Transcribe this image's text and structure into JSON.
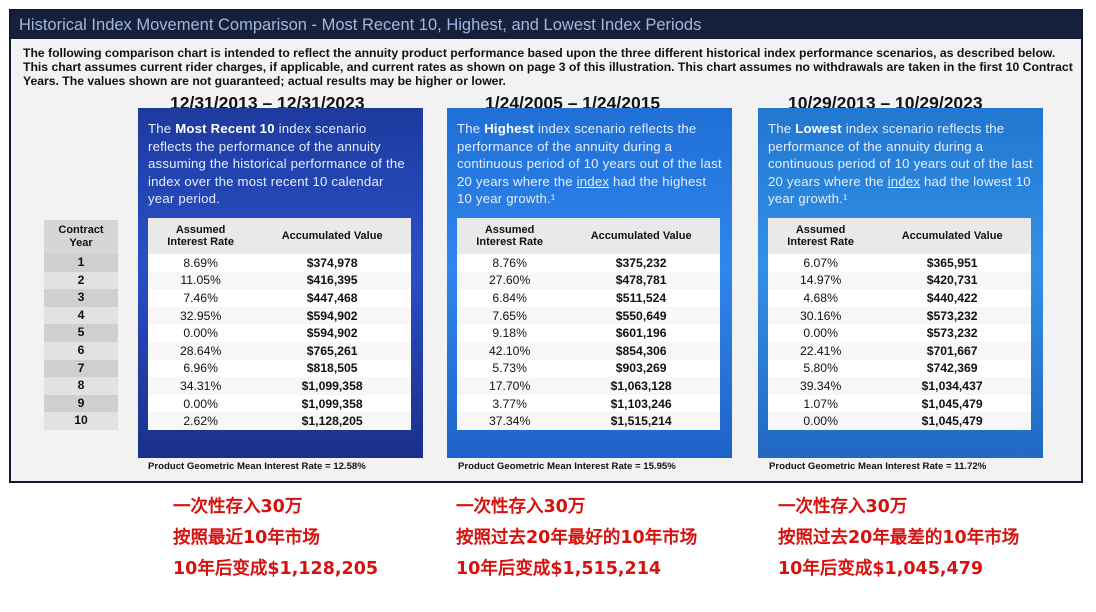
{
  "header": {
    "title": "Historical Index Movement Comparison - Most Recent 10, Highest, and Lowest Index Periods",
    "intro": "The following comparison chart is intended to reflect the annuity product performance based upon the three different historical index performance scenarios, as described below. This chart assumes current rider charges, if applicable, and current rates as shown on page 3 of this illustration. This chart assumes no withdrawals are taken in the first 10 Contract Years. The values shown are not guaranteed; actual results may be higher or lower."
  },
  "contract_year": {
    "label_line1": "Contract",
    "label_line2": "Year",
    "years": [
      "1",
      "2",
      "3",
      "4",
      "5",
      "6",
      "7",
      "8",
      "9",
      "10"
    ]
  },
  "table_headers": {
    "rate_line1": "Assumed",
    "rate_line2": "Interest Rate",
    "value": "Accumulated Value"
  },
  "scenarios": [
    {
      "period": "12/31/2013 – 12/31/2023",
      "desc_pre": "The ",
      "desc_bold": "Most Recent 10",
      "desc_mid": " index scenario reflects the performance of the annuity assuming the historical performance of the index over the most recent 10 calendar year period.",
      "desc_link": "",
      "desc_post": "",
      "rows": [
        {
          "rate": "8.69%",
          "value": "$374,978"
        },
        {
          "rate": "11.05%",
          "value": "$416,395"
        },
        {
          "rate": "7.46%",
          "value": "$447,468"
        },
        {
          "rate": "32.95%",
          "value": "$594,902"
        },
        {
          "rate": "0.00%",
          "value": "$594,902"
        },
        {
          "rate": "28.64%",
          "value": "$765,261"
        },
        {
          "rate": "6.96%",
          "value": "$818,505"
        },
        {
          "rate": "34.31%",
          "value": "$1,099,358"
        },
        {
          "rate": "0.00%",
          "value": "$1,099,358"
        },
        {
          "rate": "2.62%",
          "value": "$1,128,205"
        }
      ],
      "footnote": "Product Geometric Mean Interest Rate = 12.58%",
      "summary": [
        "一次性存入30万",
        "按照最近10年市场",
        "10年后变成$1,128,205"
      ]
    },
    {
      "period": "1/24/2005 – 1/24/2015",
      "desc_pre": "The ",
      "desc_bold": "Highest",
      "desc_mid": " index scenario reflects the performance of the annuity during a continuous period of 10 years out of the last 20 years where the ",
      "desc_link": "index",
      "desc_post": " had the highest 10 year growth.¹",
      "rows": [
        {
          "rate": "8.76%",
          "value": "$375,232"
        },
        {
          "rate": "27.60%",
          "value": "$478,781"
        },
        {
          "rate": "6.84%",
          "value": "$511,524"
        },
        {
          "rate": "7.65%",
          "value": "$550,649"
        },
        {
          "rate": "9.18%",
          "value": "$601,196"
        },
        {
          "rate": "42.10%",
          "value": "$854,306"
        },
        {
          "rate": "5.73%",
          "value": "$903,269"
        },
        {
          "rate": "17.70%",
          "value": "$1,063,128"
        },
        {
          "rate": "3.77%",
          "value": "$1,103,246"
        },
        {
          "rate": "37.34%",
          "value": "$1,515,214"
        }
      ],
      "footnote": "Product Geometric Mean Interest Rate = 15.95%",
      "summary": [
        "一次性存入30万",
        "按照过去20年最好的10年市场",
        "10年后变成$1,515,214"
      ]
    },
    {
      "period": "10/29/2013 – 10/29/2023",
      "desc_pre": "The ",
      "desc_bold": "Lowest",
      "desc_mid": " index scenario reflects the performance of the annuity during a continuous period of 10 years out of the last 20 years where the ",
      "desc_link": "index",
      "desc_post": " had the lowest 10 year growth.¹",
      "rows": [
        {
          "rate": "6.07%",
          "value": "$365,951"
        },
        {
          "rate": "14.97%",
          "value": "$420,731"
        },
        {
          "rate": "4.68%",
          "value": "$440,422"
        },
        {
          "rate": "30.16%",
          "value": "$573,232"
        },
        {
          "rate": "0.00%",
          "value": "$573,232"
        },
        {
          "rate": "22.41%",
          "value": "$701,667"
        },
        {
          "rate": "5.80%",
          "value": "$742,369"
        },
        {
          "rate": "39.34%",
          "value": "$1,034,437"
        },
        {
          "rate": "1.07%",
          "value": "$1,045,479"
        },
        {
          "rate": "0.00%",
          "value": "$1,045,479"
        }
      ],
      "footnote": "Product Geometric Mean Interest Rate = 11.72%",
      "summary": [
        "一次性存入30万",
        "按照过去20年最差的10年市场",
        "10年后变成$1,045,479"
      ]
    }
  ],
  "colors": {
    "title_bar": "#16203a",
    "panel_most_recent": "#2b4fc6",
    "panel_highest": "#2f86ec",
    "panel_lowest": "#3390e6",
    "summary_text": "#d6120f"
  }
}
